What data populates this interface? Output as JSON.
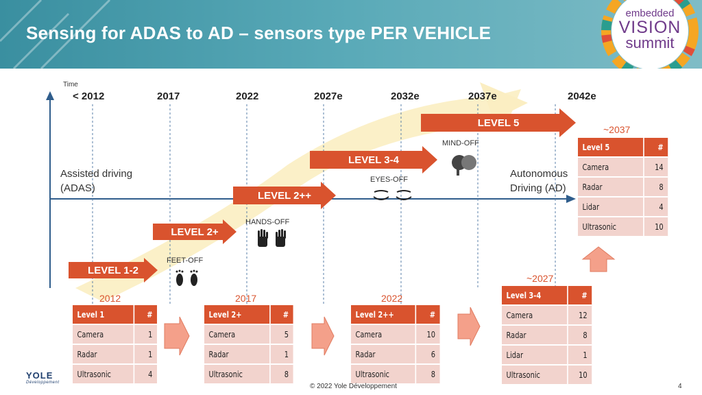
{
  "title": "Sensing for ADAS to AD – sensors type PER VEHICLE",
  "logo": {
    "line1": "embedded",
    "line2": "VISION",
    "line3": "summit"
  },
  "axis": {
    "time_label": "Time",
    "years": [
      "< 2012",
      "2017",
      "2022",
      "2027e",
      "2032e",
      "2037e",
      "2042e"
    ]
  },
  "sides": {
    "left": [
      "Assisted driving",
      "(ADAS)"
    ],
    "right": [
      "Autonomous",
      "Driving (AD)"
    ]
  },
  "levels": [
    "LEVEL 1-2",
    "LEVEL 2+",
    "LEVEL 2++",
    "LEVEL 3-4",
    "LEVEL 5"
  ],
  "milestones": {
    "feet": "FEET-OFF",
    "hands": "HANDS-OFF",
    "eyes": "EYES-OFF",
    "mind": "MIND-OFF"
  },
  "tables": [
    {
      "year": "2012",
      "header": [
        "Level 1",
        "#"
      ],
      "rows": [
        [
          "Camera",
          "1"
        ],
        [
          "Radar",
          "1"
        ],
        [
          "Ultrasonic",
          "4"
        ]
      ]
    },
    {
      "year": "2017",
      "header": [
        "Level 2+",
        "#"
      ],
      "rows": [
        [
          "Camera",
          "5"
        ],
        [
          "Radar",
          "1"
        ],
        [
          "Ultrasonic",
          "8"
        ]
      ]
    },
    {
      "year": "2022",
      "header": [
        "Level 2++",
        "#"
      ],
      "rows": [
        [
          "Camera",
          "10"
        ],
        [
          "Radar",
          "6"
        ],
        [
          "Ultrasonic",
          "8"
        ]
      ]
    },
    {
      "year": "~2027",
      "header": [
        "Level 3-4",
        "#"
      ],
      "rows": [
        [
          "Camera",
          "12"
        ],
        [
          "Radar",
          "8"
        ],
        [
          "Lidar",
          "1"
        ],
        [
          "Ultrasonic",
          "10"
        ]
      ]
    },
    {
      "year": "~2037",
      "header": [
        "Level 5",
        "#"
      ],
      "rows": [
        [
          "Camera",
          "14"
        ],
        [
          "Radar",
          "8"
        ],
        [
          "Lidar",
          "4"
        ],
        [
          "Ultrasonic",
          "10"
        ]
      ]
    }
  ],
  "footer": "© 2022 Yole Développement",
  "page": "4",
  "brand": {
    "name": "YOLE",
    "sub": "Développement"
  },
  "colors": {
    "accent": "#d9532e",
    "row": "#f2d3cd",
    "header": "#4a9aaa",
    "logo": "#6f3a8a"
  }
}
